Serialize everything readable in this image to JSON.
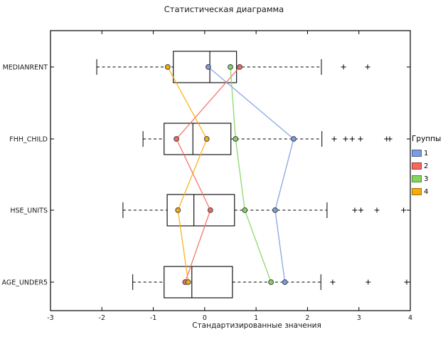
{
  "title": "Статистическая диаграмма",
  "chart_data": {
    "type": "boxplot",
    "orientation": "horizontal",
    "title": "Статистическая диаграмма",
    "xlabel": "Стандартизированные значения",
    "xlim": [
      -3,
      4
    ],
    "xticks": [
      -3,
      -2,
      -1,
      0,
      1,
      2,
      3,
      4
    ],
    "grid": false,
    "categories": [
      "MEDIANRENT",
      "FHH_CHILD",
      "HSE_UNITS",
      "AGE_UNDER5"
    ],
    "boxes": [
      {
        "category": "MEDIANRENT",
        "whisker_low": -2.1,
        "q1": -0.61,
        "median": 0.1,
        "q3": 0.62,
        "whisker_high": 2.27,
        "outliers": [
          2.7,
          3.17
        ]
      },
      {
        "category": "FHH_CHILD",
        "whisker_low": -1.2,
        "q1": -0.79,
        "median": -0.23,
        "q3": 0.51,
        "whisker_high": 2.28,
        "outliers": [
          2.52,
          2.74,
          2.87,
          3.03,
          3.54,
          3.6
        ]
      },
      {
        "category": "HSE_UNITS",
        "whisker_low": -1.59,
        "q1": -0.73,
        "median": -0.21,
        "q3": 0.58,
        "whisker_high": 2.38,
        "outliers": [
          2.92,
          3.04,
          3.35,
          3.87
        ]
      },
      {
        "category": "AGE_UNDER5",
        "whisker_low": -1.4,
        "q1": -0.79,
        "median": -0.25,
        "q3": 0.54,
        "whisker_high": 2.26,
        "outliers": [
          2.49,
          3.18,
          3.93
        ]
      }
    ],
    "series": [
      {
        "name": "1",
        "color": "#7b9ce2",
        "border": "#49618e",
        "values": [
          0.07,
          1.73,
          1.37,
          1.56
        ]
      },
      {
        "name": "2",
        "color": "#f4685e",
        "border": "#9e3c36",
        "values": [
          0.68,
          -0.55,
          0.11,
          -0.38
        ]
      },
      {
        "name": "3",
        "color": "#84d45f",
        "border": "#4c8f35",
        "values": [
          0.5,
          0.6,
          0.78,
          1.29
        ]
      },
      {
        "name": "4",
        "color": "#fbab07",
        "border": "#9a7206",
        "values": [
          -0.72,
          0.04,
          -0.52,
          -0.32
        ]
      }
    ],
    "legend": {
      "title": "Группы",
      "position": "right"
    },
    "box_color": "#000000",
    "box_fill": "#ffffff",
    "outlier_marker": "+"
  }
}
